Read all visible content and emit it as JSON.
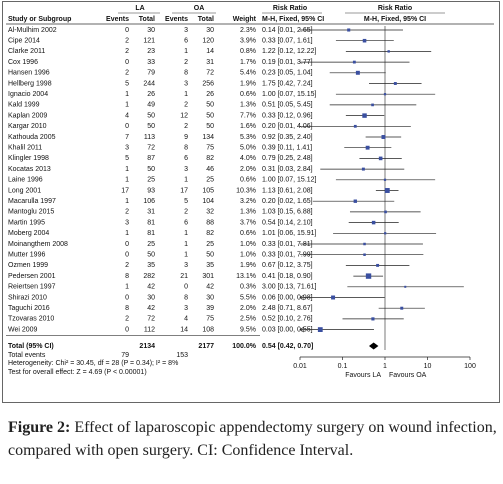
{
  "header": {
    "la": "LA",
    "oa": "OA",
    "rr_text": "Risk Ratio",
    "rr_plot": "Risk Ratio"
  },
  "columns": {
    "study": "Study or Subgroup",
    "la_events": "Events",
    "la_total": "Total",
    "oa_events": "Events",
    "oa_total": "Total",
    "weight": "Weight",
    "ci": "M-H, Fixed, 95% CI",
    "ci_plot": "M-H, Fixed, 95% CI"
  },
  "table": {
    "rows": [
      {
        "study": "Al-Mulhim 2002",
        "la_events": 0,
        "la_total": 30,
        "oa_events": 3,
        "oa_total": 30,
        "weight": 2.3,
        "weight_label": "2.3%",
        "ci": "0.14 [0.01, 2.65]",
        "rr": 0.14,
        "lo": 0.01,
        "hi": 2.65
      },
      {
        "study": "Cipe 2014",
        "la_events": 2,
        "la_total": 121,
        "oa_events": 6,
        "oa_total": 120,
        "weight": 3.9,
        "weight_label": "3.9%",
        "ci": "0.33 [0.07, 1.61]",
        "rr": 0.33,
        "lo": 0.07,
        "hi": 1.61
      },
      {
        "study": "Clarke 2011",
        "la_events": 2,
        "la_total": 23,
        "oa_events": 1,
        "oa_total": 14,
        "weight": 0.8,
        "weight_label": "0.8%",
        "ci": "1.22 [0.12, 12.22]",
        "rr": 1.22,
        "lo": 0.12,
        "hi": 12.22
      },
      {
        "study": "Cox 1996",
        "la_events": 0,
        "la_total": 33,
        "oa_events": 2,
        "oa_total": 31,
        "weight": 1.7,
        "weight_label": "1.7%",
        "ci": "0.19 [0.01, 3.77]",
        "rr": 0.19,
        "lo": 0.01,
        "hi": 3.77
      },
      {
        "study": "Hansen 1996",
        "la_events": 2,
        "la_total": 79,
        "oa_events": 8,
        "oa_total": 72,
        "weight": 5.4,
        "weight_label": "5.4%",
        "ci": "0.23 [0.05, 1.04]",
        "rr": 0.23,
        "lo": 0.05,
        "hi": 1.04
      },
      {
        "study": "Hellberg 1998",
        "la_events": 5,
        "la_total": 244,
        "oa_events": 3,
        "oa_total": 256,
        "weight": 1.9,
        "weight_label": "1.9%",
        "ci": "1.75 [0.42, 7.24]",
        "rr": 1.75,
        "lo": 0.42,
        "hi": 7.24
      },
      {
        "study": "Ignacio 2004",
        "la_events": 1,
        "la_total": 26,
        "oa_events": 1,
        "oa_total": 26,
        "weight": 0.6,
        "weight_label": "0.6%",
        "ci": "1.00 [0.07, 15.15]",
        "rr": 1,
        "lo": 0.07,
        "hi": 15.15
      },
      {
        "study": "Kald 1999",
        "la_events": 1,
        "la_total": 49,
        "oa_events": 2,
        "oa_total": 50,
        "weight": 1.3,
        "weight_label": "1.3%",
        "ci": "0.51 [0.05, 5.45]",
        "rr": 0.51,
        "lo": 0.05,
        "hi": 5.45
      },
      {
        "study": "Kaplan 2009",
        "la_events": 4,
        "la_total": 50,
        "oa_events": 12,
        "oa_total": 50,
        "weight": 7.7,
        "weight_label": "7.7%",
        "ci": "0.33 [0.12, 0.96]",
        "rr": 0.33,
        "lo": 0.12,
        "hi": 0.96
      },
      {
        "study": "Kargar 2010",
        "la_events": 0,
        "la_total": 50,
        "oa_events": 2,
        "oa_total": 50,
        "weight": 1.6,
        "weight_label": "1.6%",
        "ci": "0.20 [0.01, 4.06]",
        "rr": 0.2,
        "lo": 0.01,
        "hi": 4.06
      },
      {
        "study": "Kathouda 2005",
        "la_events": 7,
        "la_total": 113,
        "oa_events": 9,
        "oa_total": 134,
        "weight": 5.3,
        "weight_label": "5.3%",
        "ci": "0.92 [0.35, 2.40]",
        "rr": 0.92,
        "lo": 0.35,
        "hi": 2.4
      },
      {
        "study": "Khalil 2011",
        "la_events": 3,
        "la_total": 72,
        "oa_events": 8,
        "oa_total": 75,
        "weight": 5.0,
        "weight_label": "5.0%",
        "ci": "0.39 [0.11, 1.41]",
        "rr": 0.39,
        "lo": 0.11,
        "hi": 1.41
      },
      {
        "study": "Klingler 1998",
        "la_events": 5,
        "la_total": 87,
        "oa_events": 6,
        "oa_total": 82,
        "weight": 4.0,
        "weight_label": "4.0%",
        "ci": "0.79 [0.25, 2.48]",
        "rr": 0.79,
        "lo": 0.25,
        "hi": 2.48
      },
      {
        "study": "Kocatas 2013",
        "la_events": 1,
        "la_total": 50,
        "oa_events": 3,
        "oa_total": 46,
        "weight": 2.0,
        "weight_label": "2.0%",
        "ci": "0.31 [0.03, 2.84]",
        "rr": 0.31,
        "lo": 0.03,
        "hi": 2.84
      },
      {
        "study": "Laine 1996",
        "la_events": 1,
        "la_total": 25,
        "oa_events": 1,
        "oa_total": 25,
        "weight": 0.6,
        "weight_label": "0.6%",
        "ci": "1.00 [0.07, 15.12]",
        "rr": 1,
        "lo": 0.07,
        "hi": 15.12
      },
      {
        "study": "Long 2001",
        "la_events": 17,
        "la_total": 93,
        "oa_events": 17,
        "oa_total": 105,
        "weight": 10.3,
        "weight_label": "10.3%",
        "ci": "1.13 [0.61, 2.08]",
        "rr": 1.13,
        "lo": 0.61,
        "hi": 2.08
      },
      {
        "study": "Macarulla 1997",
        "la_events": 1,
        "la_total": 106,
        "oa_events": 5,
        "oa_total": 104,
        "weight": 3.2,
        "weight_label": "3.2%",
        "ci": "0.20 [0.02, 1.65]",
        "rr": 0.2,
        "lo": 0.02,
        "hi": 1.65
      },
      {
        "study": "Mantoglu 2015",
        "la_events": 2,
        "la_total": 31,
        "oa_events": 2,
        "oa_total": 32,
        "weight": 1.3,
        "weight_label": "1.3%",
        "ci": "1.03 [0.15, 6.88]",
        "rr": 1.03,
        "lo": 0.15,
        "hi": 6.88
      },
      {
        "study": "Martin 1995",
        "la_events": 3,
        "la_total": 81,
        "oa_events": 6,
        "oa_total": 88,
        "weight": 3.7,
        "weight_label": "3.7%",
        "ci": "0.54 [0.14, 2.10]",
        "rr": 0.54,
        "lo": 0.14,
        "hi": 2.1
      },
      {
        "study": "Moberg 2004",
        "la_events": 1,
        "la_total": 81,
        "oa_events": 1,
        "oa_total": 82,
        "weight": 0.6,
        "weight_label": "0.6%",
        "ci": "1.01 [0.06, 15.91]",
        "rr": 1.01,
        "lo": 0.06,
        "hi": 15.91
      },
      {
        "study": "Moinangthem 2008",
        "la_events": 0,
        "la_total": 25,
        "oa_events": 1,
        "oa_total": 25,
        "weight": 1.0,
        "weight_label": "1.0%",
        "ci": "0.33 [0.01, 7.81]",
        "rr": 0.33,
        "lo": 0.01,
        "hi": 7.81
      },
      {
        "study": "Mutter 1996",
        "la_events": 0,
        "la_total": 50,
        "oa_events": 1,
        "oa_total": 50,
        "weight": 1.0,
        "weight_label": "1.0%",
        "ci": "0.33 [0.01, 7.99]",
        "rr": 0.33,
        "lo": 0.01,
        "hi": 7.99
      },
      {
        "study": "Ozmen 1999",
        "la_events": 2,
        "la_total": 35,
        "oa_events": 3,
        "oa_total": 35,
        "weight": 1.9,
        "weight_label": "1.9%",
        "ci": "0.67 [0.12, 3.75]",
        "rr": 0.67,
        "lo": 0.12,
        "hi": 3.75
      },
      {
        "study": "Pedersen 2001",
        "la_events": 8,
        "la_total": 282,
        "oa_events": 21,
        "oa_total": 301,
        "weight": 13.1,
        "weight_label": "13.1%",
        "ci": "0.41 [0.18, 0.90]",
        "rr": 0.41,
        "lo": 0.18,
        "hi": 0.9
      },
      {
        "study": "Reiertsen 1997",
        "la_events": 1,
        "la_total": 42,
        "oa_events": 0,
        "oa_total": 42,
        "weight": 0.3,
        "weight_label": "0.3%",
        "ci": "3.00 [0.13, 71.61]",
        "rr": 3,
        "lo": 0.13,
        "hi": 71.61
      },
      {
        "study": "Shirazi 2010",
        "la_events": 0,
        "la_total": 30,
        "oa_events": 8,
        "oa_total": 30,
        "weight": 5.5,
        "weight_label": "5.5%",
        "ci": "0.06 [0.00, 0.98]",
        "rr": 0.06,
        "lo": 0,
        "hi": 0.98
      },
      {
        "study": "Taguchi 2016",
        "la_events": 8,
        "la_total": 42,
        "oa_events": 3,
        "oa_total": 39,
        "weight": 2.0,
        "weight_label": "2.0%",
        "ci": "2.48 [0.71, 8.67]",
        "rr": 2.48,
        "lo": 0.71,
        "hi": 8.67
      },
      {
        "study": "Tzovaras 2010",
        "la_events": 2,
        "la_total": 72,
        "oa_events": 4,
        "oa_total": 75,
        "weight": 2.5,
        "weight_label": "2.5%",
        "ci": "0.52 [0.10, 2.76]",
        "rr": 0.52,
        "lo": 0.1,
        "hi": 2.76
      },
      {
        "study": "Wei 2009",
        "la_events": 0,
        "la_total": 112,
        "oa_events": 14,
        "oa_total": 108,
        "weight": 9.5,
        "weight_label": "9.5%",
        "ci": "0.03 [0.00, 0.55]",
        "rr": 0.03,
        "lo": 0,
        "hi": 0.55
      }
    ],
    "total": {
      "study": "Total (95% CI)",
      "la_total": 2134,
      "oa_total": 2177,
      "weight": 100,
      "weight_label": "100.0%",
      "ci": "0.54 [0.42, 0.70]",
      "rr": 0.54,
      "lo": 0.42,
      "hi": 0.7
    },
    "total_events": {
      "study": "Total events",
      "la_events": 79,
      "oa_events": 153
    },
    "heterogeneity": "Heterogeneity: Chi² = 30.45, df = 28 (P = 0.34); I² = 8%",
    "overall_effect": "Test for overall effect: Z = 4.69 (P < 0.00001)"
  },
  "axis": {
    "log": true,
    "lim": [
      0.01,
      100
    ],
    "ticks": [
      0.01,
      0.1,
      1,
      10,
      100
    ],
    "reference": 1,
    "favours_left": "Favours LA",
    "favours_right": "Favours OA"
  },
  "colors": {
    "box": "#3a4fa0",
    "line": "#222"
  },
  "caption": {
    "label": "Figure 2:",
    "text": "Effect of laparoscopic appendectomy surgery on wound infection, compared with open surgery. CI: Confidence Interval."
  }
}
